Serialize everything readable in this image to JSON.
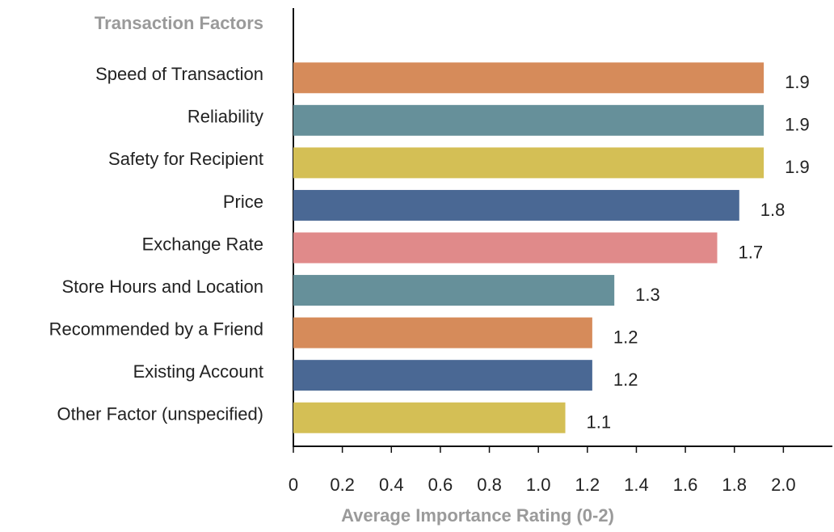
{
  "chart_data": {
    "type": "bar",
    "orientation": "horizontal",
    "title": "Transaction Factors",
    "x_label": "Average Importance Rating (0-2)",
    "categories": [
      "Speed of Transaction",
      "Reliability",
      "Safety for Recipient",
      "Price",
      "Exchange Rate",
      "Store Hours and Location",
      "Recommended by a Friend",
      "Existing Account",
      "Other Factor (unspecified)"
    ],
    "values": [
      1.92,
      1.92,
      1.92,
      1.82,
      1.73,
      1.31,
      1.22,
      1.22,
      1.11
    ],
    "value_labels": [
      "1.9",
      "1.9",
      "1.9",
      "1.8",
      "1.7",
      "1.3",
      "1.2",
      "1.2",
      "1.1"
    ],
    "colors": [
      "#d68b5a",
      "#66909a",
      "#d4bf55",
      "#4a6894",
      "#e08a8a",
      "#66909a",
      "#d68b5a",
      "#4a6894",
      "#d4bf55"
    ],
    "xlim": [
      0,
      2.2
    ],
    "xticks": [
      0,
      0.2,
      0.4,
      0.6,
      0.8,
      {
        "value": 1,
        "label": "1.0"
      },
      1.2,
      1.4,
      1.6,
      1.8,
      {
        "value": 2,
        "label": "2.0"
      }
    ]
  }
}
